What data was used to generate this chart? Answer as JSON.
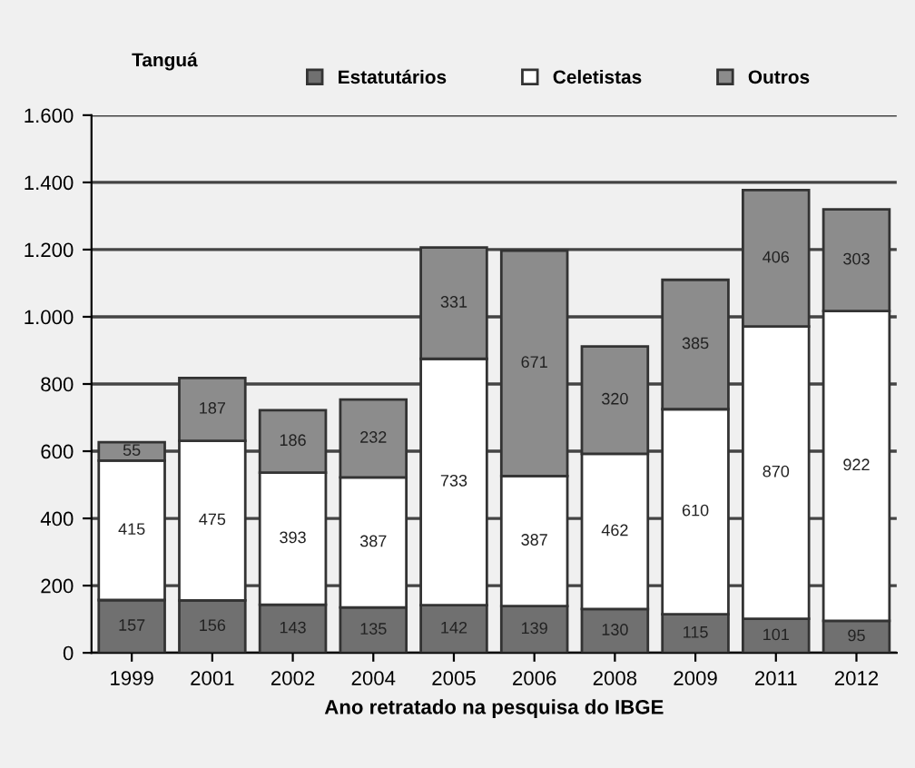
{
  "chart_data": {
    "type": "bar",
    "stacked": true,
    "legend_title": "Tanguá",
    "xlabel": "Ano retratado na pesquisa do IBGE",
    "categories": [
      "1999",
      "2001",
      "2002",
      "2004",
      "2005",
      "2006",
      "2008",
      "2009",
      "2011",
      "2012"
    ],
    "series": [
      {
        "name": "Estatutários",
        "color": "#707070",
        "values": [
          157,
          156,
          143,
          135,
          142,
          139,
          130,
          115,
          101,
          95
        ]
      },
      {
        "name": "Celetistas",
        "color": "#ffffff",
        "values": [
          415,
          475,
          393,
          387,
          733,
          387,
          462,
          610,
          870,
          922
        ]
      },
      {
        "name": "Outros",
        "color": "#8c8c8c",
        "values": [
          55,
          187,
          186,
          232,
          331,
          671,
          320,
          385,
          406,
          303
        ]
      }
    ],
    "ylim": [
      0,
      1600
    ],
    "yticks": [
      {
        "value": 0,
        "label": "0"
      },
      {
        "value": 200,
        "label": "200"
      },
      {
        "value": 400,
        "label": "400"
      },
      {
        "value": 600,
        "label": "600"
      },
      {
        "value": 800,
        "label": "800"
      },
      {
        "value": 1000,
        "label": "1.000"
      },
      {
        "value": 1200,
        "label": "1.200"
      },
      {
        "value": 1400,
        "label": "1.400"
      },
      {
        "value": 1600,
        "label": "1.600"
      }
    ],
    "grid": "y",
    "legend": "top",
    "data_labels": true
  }
}
